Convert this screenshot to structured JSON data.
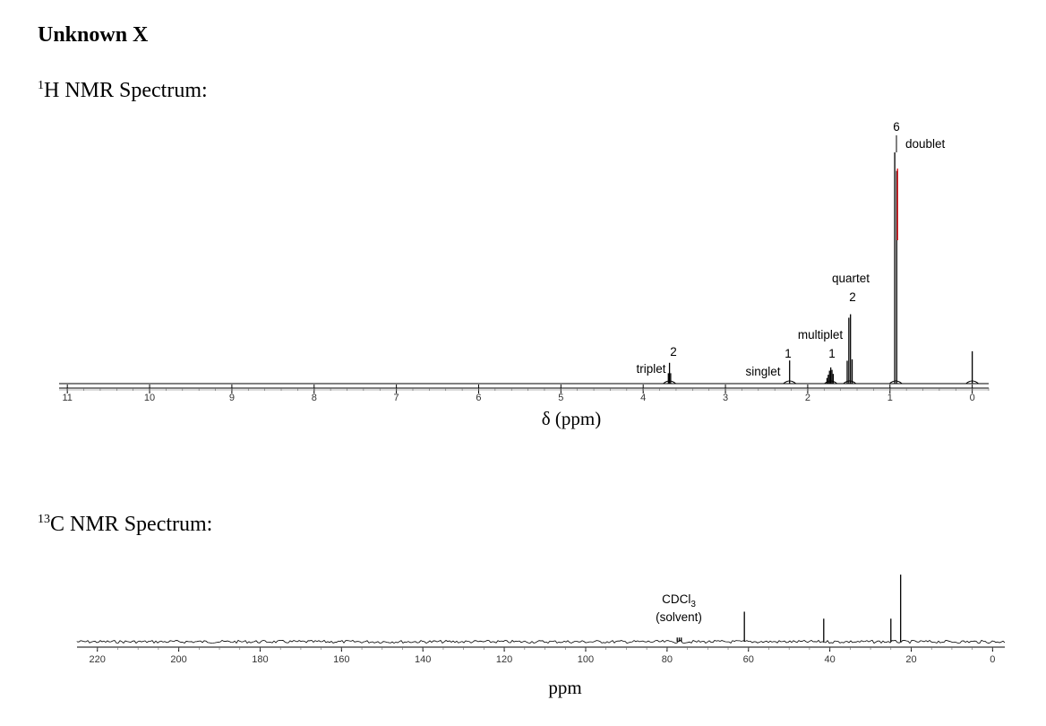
{
  "page": {
    "title": "Unknown X",
    "h_nmr_heading": {
      "sup": "1",
      "text": "H NMR Spectrum:"
    },
    "c_nmr_heading": {
      "sup": "13",
      "text": "C NMR Spectrum:"
    }
  },
  "chart_data": [
    {
      "type": "line",
      "name": "1H NMR",
      "xlabel": "δ (ppm)",
      "ylabel": "",
      "xlim": [
        11.1,
        -0.2
      ],
      "x_direction": "reversed",
      "x_ticks": [
        11,
        10,
        9,
        8,
        7,
        6,
        5,
        4,
        3,
        2,
        1,
        0
      ],
      "grid": false,
      "peaks": [
        {
          "ppm": 3.68,
          "height": 0.09,
          "integration": "2",
          "multiplicity": "triplet",
          "mult_pattern": "triplet"
        },
        {
          "ppm": 2.22,
          "height": 0.1,
          "integration": "1",
          "multiplicity": "singlet",
          "mult_pattern": "singlet"
        },
        {
          "ppm": 1.72,
          "height": 0.07,
          "integration": "1",
          "multiplicity": "multiplet",
          "mult_pattern": "multiplet"
        },
        {
          "ppm": 1.49,
          "height": 0.3,
          "integration": "2",
          "multiplicity": "quartet",
          "mult_pattern": "quartet"
        },
        {
          "ppm": 0.93,
          "height": 1.0,
          "integration": "6",
          "multiplicity": "doublet",
          "mult_pattern": "doublet"
        },
        {
          "ppm": 0.0,
          "height": 0.14,
          "integration": "",
          "multiplicity": "",
          "mult_pattern": "singlet"
        }
      ],
      "integral_trace_color": "#e8141b"
    },
    {
      "type": "line",
      "name": "13C NMR",
      "xlabel": "ppm",
      "ylabel": "",
      "xlim": [
        225,
        -3
      ],
      "x_direction": "reversed",
      "x_ticks": [
        220,
        200,
        180,
        160,
        140,
        120,
        100,
        80,
        60,
        40,
        20,
        0
      ],
      "grid": false,
      "peaks": [
        {
          "ppm": 77.5,
          "height": 0.06,
          "label": "",
          "group": "solvent"
        },
        {
          "ppm": 77.0,
          "height": 0.06,
          "label": "",
          "group": "solvent"
        },
        {
          "ppm": 76.5,
          "height": 0.06,
          "label": "",
          "group": "solvent"
        },
        {
          "ppm": 61.0,
          "height": 0.43,
          "label": ""
        },
        {
          "ppm": 41.5,
          "height": 0.33,
          "label": ""
        },
        {
          "ppm": 25.0,
          "height": 0.33,
          "label": ""
        },
        {
          "ppm": 22.6,
          "height": 0.96,
          "label": ""
        }
      ],
      "solvent_label": {
        "formula": "CDCl",
        "subscript": "3",
        "note": "(solvent)"
      }
    }
  ]
}
